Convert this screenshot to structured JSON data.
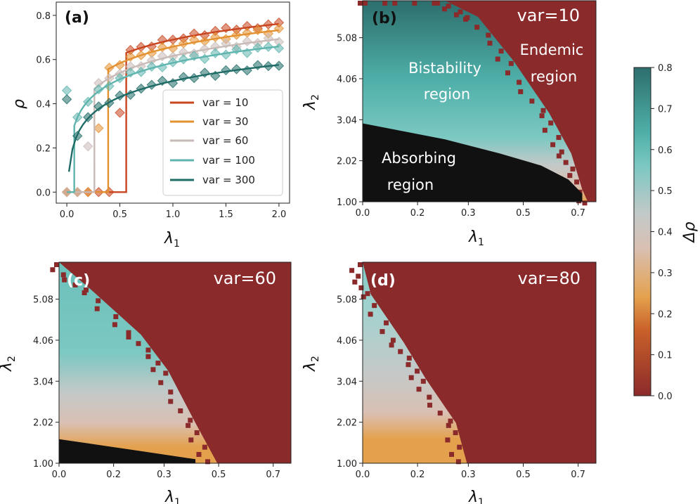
{
  "colors": {
    "endemic": "#8b2a2b",
    "absorbing": "#111111",
    "bistable": "#4fb0a9",
    "cmap": [
      "#8b2a2b",
      "#c9612a",
      "#e4a14d",
      "#d9c0b3",
      "#c4c9c8",
      "#7cc8c2",
      "#4fb0a9",
      "#2d6e6d"
    ]
  },
  "panel_a": {
    "label": "(a)",
    "chart_data": {
      "type": "line",
      "title": "",
      "xlabel": "λ1",
      "ylabel": "ρ",
      "xlim": [
        -0.1,
        2.1
      ],
      "ylim": [
        -0.05,
        0.86
      ],
      "xticks": [
        "0.0",
        "0.5",
        "1.0",
        "1.5",
        "2.0"
      ],
      "yticks": [
        "0.0",
        "0.2",
        "0.4",
        "0.6",
        "0.8"
      ],
      "legend_position": "center-right",
      "series": [
        {
          "name": "var = 10",
          "color": "#c8461f",
          "jump": 0.56,
          "a": 0.69,
          "b": 0.103
        },
        {
          "name": "var = 30",
          "color": "#e3902f",
          "jump": 0.39,
          "a": 0.658,
          "b": 0.108
        },
        {
          "name": "var = 60",
          "color": "#c8bab7",
          "jump": 0.26,
          "a": 0.616,
          "b": 0.11
        },
        {
          "name": "var = 100",
          "color": "#5fb5ae",
          "jump": 0.07,
          "a": 0.585,
          "b": 0.107
        },
        {
          "name": "var = 300",
          "color": "#1f6b66",
          "jump": 0.0,
          "a": 0.503,
          "b": 0.105
        }
      ]
    }
  },
  "panel_b": {
    "label": "(b)",
    "var_label": "var=10",
    "annotations": [
      "Bistability",
      "region",
      "Endemic",
      "region",
      "Absorbing",
      "region"
    ],
    "chart_data": {
      "type": "heatmap",
      "xlabel": "λ1",
      "ylabel": "λ2",
      "xticks": [
        "0.0",
        "0.2",
        "0.3",
        "0.5",
        "0.7"
      ],
      "yticks": [
        "1.00",
        "2.02",
        "3.04",
        "4.06",
        "5.08"
      ],
      "boundary": [
        [
          0.0,
          6.0
        ],
        [
          0.3,
          6.0
        ],
        [
          0.42,
          5.6
        ],
        [
          0.55,
          4.5
        ],
        [
          0.68,
          3.2
        ],
        [
          0.76,
          2.2
        ],
        [
          0.8,
          1.3
        ],
        [
          0.82,
          1.0
        ]
      ],
      "absorbing_edge": [
        [
          0.0,
          2.95
        ],
        [
          0.3,
          2.55
        ],
        [
          0.5,
          2.2
        ],
        [
          0.65,
          1.9
        ],
        [
          0.75,
          1.55
        ],
        [
          0.8,
          1.2
        ]
      ]
    }
  },
  "panel_c": {
    "label": "(c)",
    "var_label": "var=60",
    "chart_data": {
      "type": "heatmap",
      "xlabel": "λ1",
      "ylabel": "λ2",
      "xticks": [
        "0.0",
        "0.2",
        "0.3",
        "0.5",
        "0.7"
      ],
      "yticks": [
        "1.00",
        "2.02",
        "3.04",
        "4.06",
        "5.08"
      ],
      "boundary": [
        [
          0.0,
          6.0
        ],
        [
          0.12,
          5.3
        ],
        [
          0.3,
          4.2
        ],
        [
          0.4,
          3.3
        ],
        [
          0.5,
          2.0
        ],
        [
          0.58,
          1.0
        ]
      ],
      "absorbing_edge": [
        [
          0.0,
          1.6
        ],
        [
          0.3,
          1.3
        ],
        [
          0.5,
          1.1
        ]
      ]
    }
  },
  "panel_d": {
    "label": "(d)",
    "var_label": "var=80",
    "chart_data": {
      "type": "heatmap",
      "xlabel": "λ1",
      "ylabel": "λ2",
      "xticks": [
        "0.0",
        "0.2",
        "0.3",
        "0.5",
        "0.7"
      ],
      "yticks": [
        "1.00",
        "2.02",
        "3.04",
        "4.06",
        "5.08"
      ],
      "boundary": [
        [
          0.0,
          6.0
        ],
        [
          0.03,
          5.2
        ],
        [
          0.15,
          4.0
        ],
        [
          0.23,
          3.1
        ],
        [
          0.34,
          2.0
        ],
        [
          0.38,
          1.0
        ]
      ]
    }
  },
  "colorbar": {
    "label": "Δρ",
    "ticks": [
      "0.0",
      "0.1",
      "0.2",
      "0.3",
      "0.4",
      "0.5",
      "0.6",
      "0.7",
      "0.8"
    ]
  }
}
